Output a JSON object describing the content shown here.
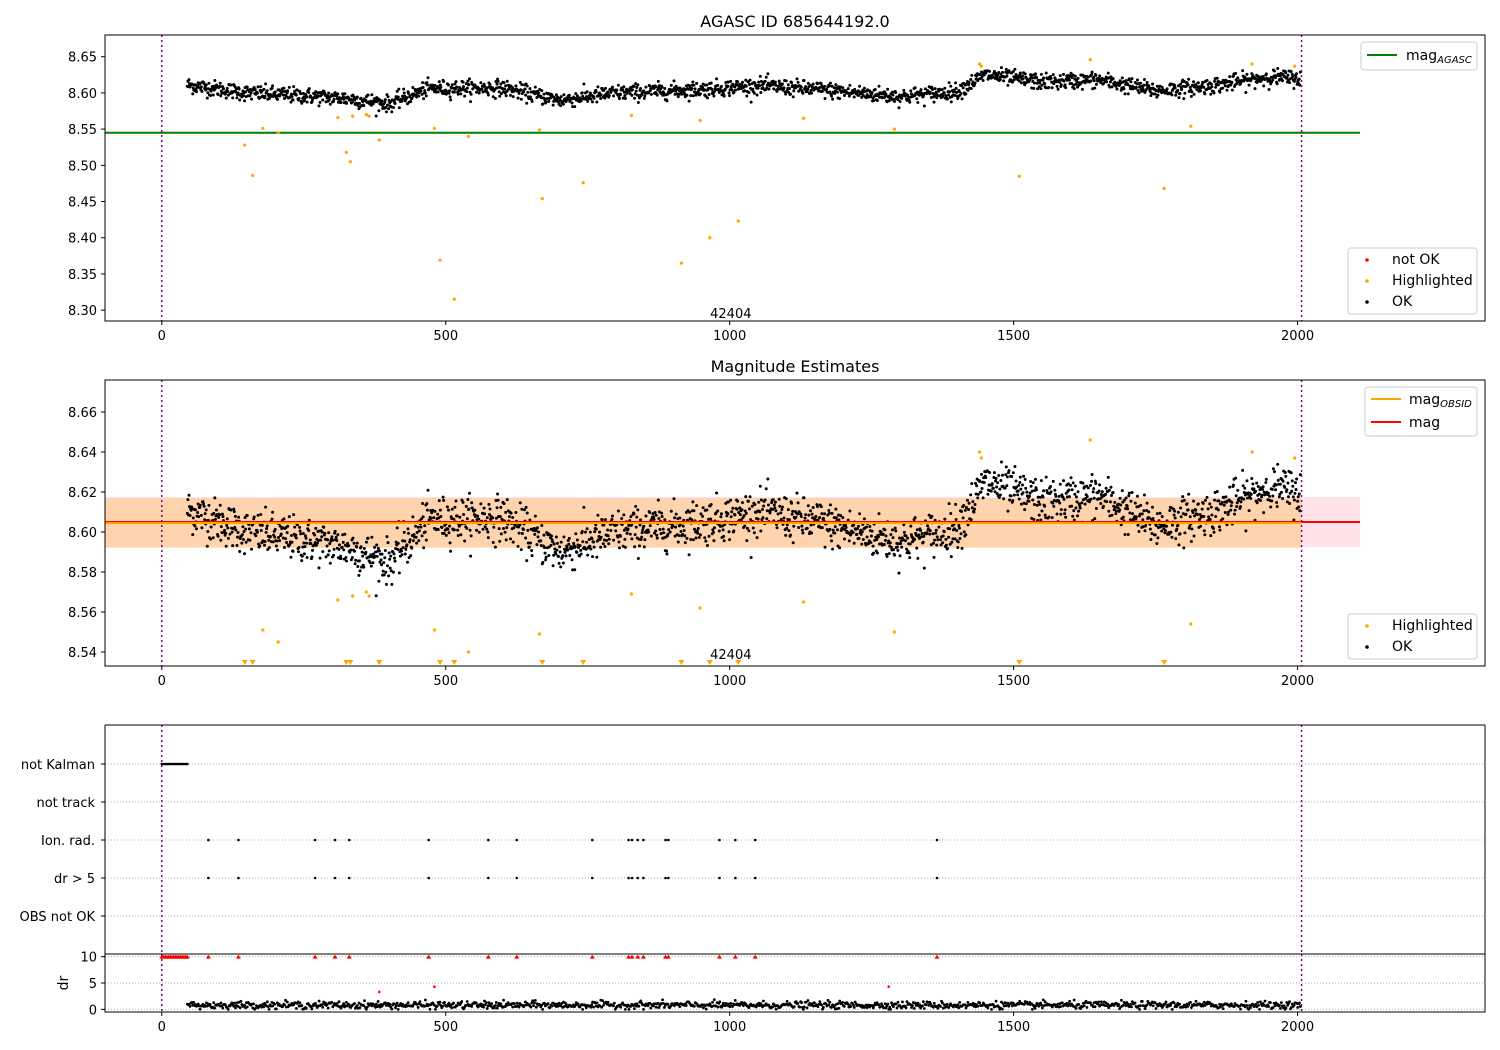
{
  "chart_data": [
    {
      "type": "scatter",
      "title": "AGASC ID 685644192.0",
      "xlim": [
        -100,
        2330
      ],
      "ylim": [
        8.285,
        8.68
      ],
      "xticks": [
        0,
        500,
        1000,
        1500,
        2000
      ],
      "yticks": [
        8.3,
        8.35,
        8.4,
        8.45,
        8.5,
        8.55,
        8.6,
        8.65
      ],
      "vlines": [
        0,
        2007
      ],
      "annotation": {
        "text": "42404",
        "x": 1002,
        "y": 8.296
      },
      "reference_line": {
        "name": "mag_AGASC",
        "y": 8.545,
        "x": [
          -100,
          2110
        ],
        "color": "#008000"
      },
      "ok_series": {
        "name": "OK",
        "color": "#000000",
        "x_range": [
          45,
          2005
        ],
        "baseline": [
          [
            45,
            8.611
          ],
          [
            150,
            8.6
          ],
          [
            250,
            8.596
          ],
          [
            330,
            8.592
          ],
          [
            400,
            8.585
          ],
          [
            470,
            8.606
          ],
          [
            600,
            8.607
          ],
          [
            700,
            8.59
          ],
          [
            800,
            8.6
          ],
          [
            950,
            8.605
          ],
          [
            1050,
            8.61
          ],
          [
            1150,
            8.605
          ],
          [
            1300,
            8.595
          ],
          [
            1400,
            8.602
          ],
          [
            1450,
            8.625
          ],
          [
            1550,
            8.615
          ],
          [
            1650,
            8.618
          ],
          [
            1750,
            8.603
          ],
          [
            1850,
            8.61
          ],
          [
            1950,
            8.622
          ],
          [
            2005,
            8.62
          ]
        ]
      },
      "highlighted": {
        "name": "Highlighted",
        "color": "#ffa500",
        "points": [
          [
            146,
            8.528
          ],
          [
            160,
            8.486
          ],
          [
            178,
            8.551
          ],
          [
            205,
            8.545
          ],
          [
            310,
            8.566
          ],
          [
            325,
            8.518
          ],
          [
            332,
            8.505
          ],
          [
            336,
            8.568
          ],
          [
            360,
            8.57
          ],
          [
            365,
            8.568
          ],
          [
            383,
            8.535
          ],
          [
            480,
            8.551
          ],
          [
            490,
            8.369
          ],
          [
            515,
            8.315
          ],
          [
            540,
            8.54
          ],
          [
            665,
            8.549
          ],
          [
            670,
            8.454
          ],
          [
            742,
            8.476
          ],
          [
            827,
            8.569
          ],
          [
            915,
            8.365
          ],
          [
            948,
            8.562
          ],
          [
            965,
            8.4
          ],
          [
            1015,
            8.423
          ],
          [
            1130,
            8.565
          ],
          [
            1290,
            8.55
          ],
          [
            1440,
            8.64
          ],
          [
            1443,
            8.637
          ],
          [
            1510,
            8.485
          ],
          [
            1635,
            8.646
          ],
          [
            1765,
            8.468
          ],
          [
            1812,
            8.554
          ],
          [
            1920,
            8.64
          ],
          [
            1995,
            8.637
          ]
        ]
      },
      "legend": [
        "not OK",
        "Highlighted",
        "OK"
      ],
      "legend_colors": [
        "#ff0000",
        "#ffa500",
        "#000000"
      ]
    },
    {
      "type": "scatter",
      "title": "Magnitude Estimates",
      "xlim": [
        -100,
        2330
      ],
      "ylim": [
        8.533,
        8.676
      ],
      "xticks": [
        0,
        500,
        1000,
        1500,
        2000
      ],
      "yticks": [
        8.54,
        8.56,
        8.58,
        8.6,
        8.62,
        8.64,
        8.66
      ],
      "vlines": [
        0,
        2007
      ],
      "annotation": {
        "text": "42404",
        "x": 1002,
        "y": 8.539
      },
      "mag": {
        "name": "mag",
        "y": 8.605,
        "color": "#ff0000",
        "band": [
          8.5925,
          8.6175
        ],
        "band_color": "#ffc0cb"
      },
      "mag_obsid": {
        "name": "mag_OBSID",
        "y": 8.6045,
        "color": "#ffa500",
        "band": [
          8.592,
          8.617
        ]
      },
      "ok_series_ref": "chart_data.0.ok_series",
      "highlighted_off_scale_x": [
        146,
        160,
        325,
        332,
        383,
        490,
        515,
        670,
        742,
        915,
        965,
        1015,
        1510,
        1765
      ],
      "legend": [
        "mag_OBSID",
        "mag",
        "Highlighted",
        "OK"
      ]
    },
    {
      "type": "scatter",
      "title": "",
      "xlim": [
        -100,
        2330
      ],
      "xticks": [
        0,
        500,
        1000,
        1500,
        2000
      ],
      "categories": [
        "not Kalman",
        "not track",
        "Ion. rad.",
        "dr > 5",
        "OBS not OK"
      ],
      "flags": {
        "not Kalman": [
          0,
          3,
          6,
          9,
          12,
          15,
          18,
          21,
          24,
          27,
          30,
          33,
          36,
          39,
          42,
          45
        ],
        "not track": [],
        "Ion. rad.": [
          82,
          135,
          270,
          305,
          330,
          470,
          575,
          625,
          758,
          822,
          828,
          838,
          848,
          887,
          892,
          982,
          1010,
          1045,
          1365
        ],
        "dr > 5": [
          82,
          135,
          270,
          305,
          330,
          470,
          575,
          625,
          758,
          822,
          828,
          838,
          848,
          887,
          892,
          982,
          1010,
          1045,
          1365
        ],
        "OBS not OK": []
      },
      "vlines": [
        0,
        2007
      ]
    },
    {
      "type": "scatter",
      "title": "",
      "ylabel": "dr",
      "xlim": [
        -100,
        2330
      ],
      "ylim": [
        -0.5,
        10.5
      ],
      "xticks": [
        0,
        500,
        1000,
        1500,
        2000
      ],
      "yticks": [
        0,
        5,
        10
      ],
      "clipped_at_10_x": [
        0,
        3,
        6,
        9,
        12,
        15,
        18,
        21,
        24,
        27,
        30,
        33,
        36,
        39,
        42,
        45,
        82,
        135,
        270,
        305,
        330,
        470,
        575,
        625,
        758,
        822,
        828,
        838,
        848,
        887,
        892,
        982,
        1010,
        1045,
        1365
      ],
      "red_points": [
        [
          383,
          3.3
        ],
        [
          480,
          4.3
        ],
        [
          1280,
          4.3
        ]
      ],
      "ok_dr_range": [
        0,
        2.2
      ],
      "vlines": [
        0,
        2007
      ]
    }
  ]
}
